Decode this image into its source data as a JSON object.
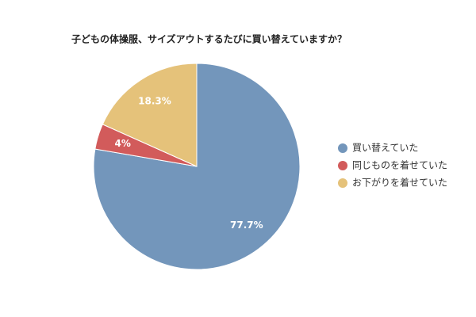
{
  "chart_data": {
    "type": "pie",
    "title": "子どもの体操服、サイズアウトするたびに買い替えていますか？",
    "series": [
      {
        "name": "買い替えていた",
        "color": "#7396bb",
        "values": [
          77.7
        ],
        "value_labels": [
          "77.7%"
        ]
      },
      {
        "name": "同じものを着せていた",
        "color": "#d25b5b",
        "values": [
          4
        ],
        "value_labels": [
          "4%"
        ]
      },
      {
        "name": "お下がりを着せていた",
        "color": "#e5c27a",
        "values": [
          18.3
        ],
        "value_labels": [
          "18.3%"
        ]
      }
    ],
    "legend": "right"
  }
}
